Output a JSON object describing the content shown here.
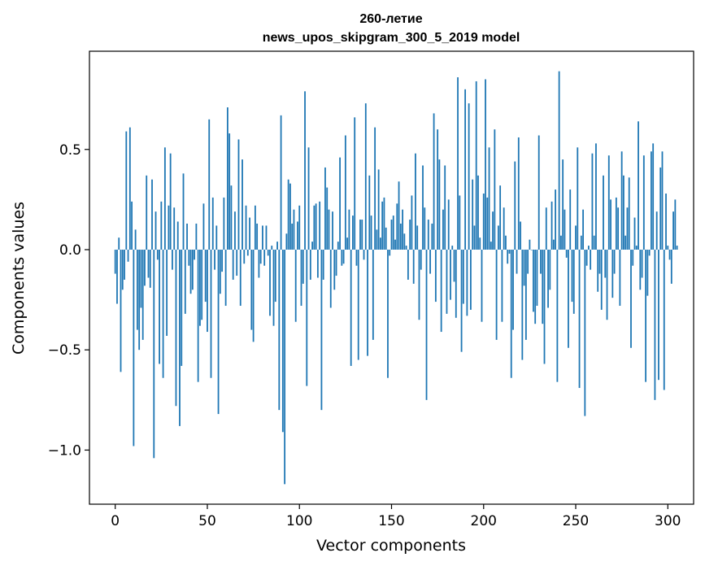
{
  "chart_data": {
    "type": "bar",
    "title_line1": "260-летие",
    "title_line2": "news_upos_skipgram_300_5_2019 model",
    "xlabel": "Vector components",
    "ylabel": "Components values",
    "xlim": [
      -14,
      314
    ],
    "ylim": [
      -1.27,
      0.99
    ],
    "xticks": [
      0,
      50,
      100,
      150,
      200,
      250,
      300
    ],
    "xtick_labels": [
      "0",
      "50",
      "100",
      "150",
      "200",
      "250",
      "300"
    ],
    "yticks": [
      -1.0,
      -0.5,
      0.0,
      0.5
    ],
    "ytick_labels": [
      "−1.0",
      "−0.5",
      "0.0",
      "0.5"
    ],
    "bar_color": "#1f77b4",
    "grid": false,
    "values": [
      -0.12,
      -0.27,
      0.06,
      -0.61,
      -0.2,
      -0.15,
      0.59,
      -0.06,
      0.61,
      0.24,
      -0.98,
      0.1,
      -0.4,
      -0.5,
      -0.29,
      -0.45,
      -0.18,
      0.37,
      -0.14,
      -0.19,
      0.35,
      -1.04,
      0.19,
      -0.05,
      -0.57,
      0.24,
      -0.64,
      0.51,
      -0.43,
      0.22,
      0.48,
      -0.1,
      0.21,
      -0.78,
      0.14,
      -0.88,
      -0.58,
      0.38,
      -0.32,
      0.13,
      -0.08,
      -0.22,
      -0.2,
      -0.05,
      0.13,
      -0.66,
      -0.38,
      -0.35,
      0.23,
      -0.26,
      -0.41,
      0.65,
      -0.64,
      0.26,
      -0.1,
      0.12,
      -0.82,
      -0.22,
      -0.11,
      0.26,
      -0.28,
      0.71,
      0.58,
      0.32,
      -0.15,
      0.19,
      -0.13,
      0.55,
      -0.28,
      0.45,
      -0.07,
      0.22,
      -0.03,
      0.16,
      -0.4,
      -0.46,
      0.22,
      0.13,
      -0.14,
      -0.07,
      0.12,
      -0.08,
      0.12,
      -0.03,
      -0.33,
      0.02,
      -0.38,
      -0.26,
      0.04,
      -0.8,
      0.67,
      -0.91,
      -1.17,
      0.08,
      0.35,
      0.33,
      0.13,
      0.2,
      -0.36,
      0.14,
      0.22,
      -0.28,
      -0.17,
      0.79,
      -0.68,
      0.51,
      -0.15,
      0.04,
      0.22,
      0.23,
      -0.14,
      0.24,
      -0.8,
      -0.15,
      0.41,
      0.31,
      0.2,
      -0.29,
      0.19,
      -0.2,
      -0.13,
      0.04,
      0.46,
      -0.08,
      -0.07,
      0.57,
      0.06,
      0.2,
      -0.58,
      0.17,
      0.66,
      -0.08,
      -0.55,
      0.15,
      0.15,
      -0.05,
      0.73,
      -0.53,
      0.37,
      0.17,
      -0.45,
      0.61,
      0.1,
      0.4,
      0.06,
      0.24,
      0.26,
      0.11,
      -0.64,
      -0.03,
      0.15,
      0.17,
      0.05,
      0.23,
      0.34,
      0.13,
      0.2,
      0.08,
      0.02,
      -0.15,
      0.15,
      0.27,
      -0.17,
      0.48,
      0.12,
      -0.35,
      -0.1,
      0.42,
      0.21,
      -0.75,
      0.15,
      -0.12,
      0.13,
      0.68,
      -0.26,
      0.6,
      0.45,
      -0.41,
      0.2,
      0.42,
      -0.32,
      0.25,
      -0.25,
      0.02,
      -0.16,
      -0.34,
      0.86,
      0.27,
      -0.51,
      -0.27,
      0.8,
      -0.33,
      0.73,
      -0.3,
      0.35,
      0.12,
      0.84,
      0.37,
      0.06,
      -0.36,
      0.28,
      0.85,
      0.26,
      0.51,
      0.04,
      0.19,
      0.6,
      -0.45,
      0.12,
      0.32,
      -0.36,
      0.21,
      0.07,
      -0.07,
      -0.02,
      -0.64,
      -0.4,
      0.44,
      -0.12,
      0.56,
      0.14,
      -0.55,
      -0.18,
      -0.45,
      -0.12,
      0.05,
      0.0,
      -0.31,
      -0.37,
      -0.28,
      0.57,
      -0.12,
      -0.37,
      -0.57,
      0.21,
      -0.29,
      -0.2,
      0.24,
      0.05,
      0.3,
      -0.66,
      0.89,
      0.07,
      0.45,
      0.2,
      -0.04,
      -0.49,
      0.3,
      -0.26,
      -0.32,
      0.12,
      0.51,
      -0.69,
      0.07,
      0.2,
      -0.83,
      -0.08,
      0.02,
      -0.1,
      0.48,
      0.07,
      0.53,
      -0.21,
      -0.12,
      -0.3,
      0.37,
      -0.14,
      -0.35,
      0.47,
      0.25,
      -0.24,
      -0.12,
      0.26,
      0.21,
      -0.28,
      0.49,
      0.37,
      0.07,
      0.21,
      0.36,
      -0.49,
      -0.08,
      0.16,
      0.02,
      0.64,
      -0.2,
      -0.14,
      0.47,
      -0.66,
      -0.23,
      -0.03,
      0.49,
      0.53,
      -0.75,
      0.19,
      -0.65,
      0.41,
      0.49,
      -0.7,
      0.28,
      0.02,
      -0.05,
      -0.17,
      0.19,
      0.25,
      0.02
    ]
  }
}
